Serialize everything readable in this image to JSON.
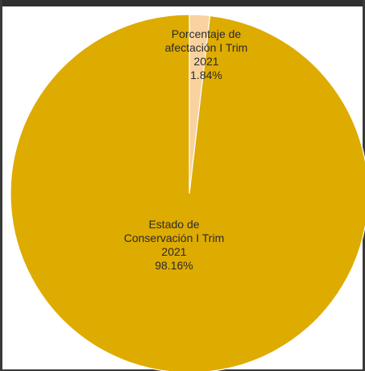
{
  "chart_data": {
    "type": "pie",
    "title": "",
    "series": [
      {
        "name": "",
        "values": [
          1.84,
          98.16
        ]
      }
    ],
    "slices": [
      {
        "label_lines": [
          "Porcentaje de",
          "afectación I Trim",
          "2021"
        ],
        "value_text": "1.84%",
        "value": 1.84,
        "color": "#f9d2a0"
      },
      {
        "label_lines": [
          "Estado de",
          "Conservación I Trim",
          "2021"
        ],
        "value_text": "98.16%",
        "value": 98.16,
        "color": "#deab00"
      }
    ],
    "legend": "none"
  }
}
